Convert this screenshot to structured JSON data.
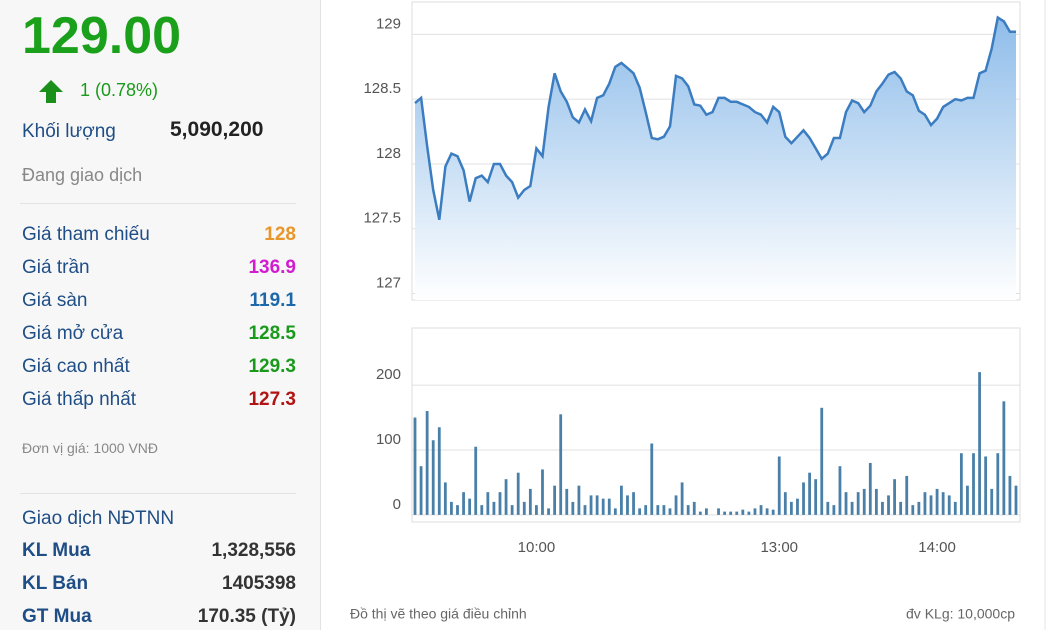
{
  "quote": {
    "price": "129.00",
    "change": "1 (0.78%)",
    "volume_label": "Khối lượng",
    "volume": "5,090,200",
    "status": "Đang giao dịch"
  },
  "stats": [
    {
      "label": "Giá tham chiếu",
      "value": 128,
      "color": "#e8962a"
    },
    {
      "label": "Giá trần",
      "value": 136.9,
      "color": "#d21ccf"
    },
    {
      "label": "Giá sàn",
      "value": 119.1,
      "color": "#1c68a8"
    },
    {
      "label": "Giá mở cửa",
      "value": 128.5,
      "color": "#1a9a1a"
    },
    {
      "label": "Giá cao nhất",
      "value": 129.3,
      "color": "#1a9a1a"
    },
    {
      "label": "Giá thấp nhất",
      "value": 127.3,
      "color": "#b01414"
    }
  ],
  "unit_note": "Đơn vị giá: 1000 VNĐ",
  "foreign": {
    "title": "Giao dịch NĐTNN",
    "rows": [
      {
        "label": "KL Mua",
        "value": "1,328,556"
      },
      {
        "label": "KL Bán",
        "value": "1405398"
      },
      {
        "label": "GT Mua",
        "value": "170.35 (Tỷ)"
      }
    ]
  },
  "chart_data": [
    {
      "type": "line",
      "color": "#3b7dc0",
      "ylim": [
        126.95,
        129.25
      ],
      "yticks": [
        127,
        127.5,
        128,
        128.5,
        129
      ],
      "grid": true,
      "values": [
        128.47,
        128.51,
        128.14,
        127.8,
        127.57,
        127.98,
        128.08,
        128.06,
        127.95,
        127.71,
        127.89,
        127.91,
        127.86,
        128.0,
        128.0,
        127.91,
        127.86,
        127.74,
        127.8,
        127.83,
        128.12,
        128.06,
        128.44,
        128.7,
        128.56,
        128.48,
        128.36,
        128.32,
        128.42,
        128.33,
        128.51,
        128.53,
        128.62,
        128.75,
        128.78,
        128.74,
        128.7,
        128.59,
        128.4,
        128.2,
        128.19,
        128.21,
        128.29,
        128.68,
        128.66,
        128.6,
        128.46,
        128.45,
        128.38,
        128.4,
        128.51,
        128.51,
        128.48,
        128.48,
        128.46,
        128.44,
        128.4,
        128.38,
        128.32,
        128.44,
        128.4,
        128.21,
        128.16,
        128.21,
        128.26,
        128.2,
        128.12,
        128.04,
        128.08,
        128.2,
        128.2,
        128.4,
        128.49,
        128.47,
        128.4,
        128.45,
        128.56,
        128.62,
        128.69,
        128.71,
        128.66,
        128.56,
        128.53,
        128.41,
        128.38,
        128.3,
        128.35,
        128.44,
        128.47,
        128.5,
        128.49,
        128.51,
        128.51,
        128.7,
        128.72,
        128.89,
        129.13,
        129.1,
        129.02,
        129.02
      ]
    },
    {
      "type": "bar",
      "color": "#4a80a8",
      "ylim": [
        -11,
        288
      ],
      "yticks": [
        0,
        100,
        200
      ],
      "categories": [
        null,
        null,
        null,
        null,
        null,
        null,
        null,
        null,
        null,
        null,
        null,
        null,
        null,
        null,
        null,
        null,
        null,
        null,
        null,
        null,
        "10:00",
        null,
        null,
        null,
        null,
        null,
        null,
        null,
        null,
        null,
        null,
        null,
        null,
        null,
        null,
        null,
        null,
        null,
        null,
        null,
        null,
        null,
        null,
        null,
        null,
        null,
        null,
        null,
        null,
        null,
        null,
        null,
        null,
        null,
        null,
        null,
        null,
        null,
        null,
        null,
        "13:00",
        null,
        null,
        null,
        null,
        null,
        null,
        null,
        null,
        null,
        null,
        null,
        null,
        null,
        null,
        null,
        null,
        null,
        null,
        null,
        null,
        null,
        null,
        null,
        null,
        null,
        "14:00",
        null,
        null,
        null,
        null,
        null,
        null,
        null,
        null,
        null,
        null,
        null,
        null,
        null
      ],
      "values": [
        150,
        75,
        160,
        115,
        135,
        50,
        20,
        15,
        35,
        25,
        105,
        15,
        35,
        20,
        35,
        55,
        15,
        65,
        20,
        40,
        15,
        70,
        10,
        45,
        155,
        40,
        20,
        45,
        15,
        30,
        30,
        25,
        25,
        10,
        45,
        30,
        35,
        10,
        15,
        110,
        15,
        15,
        10,
        30,
        50,
        15,
        20,
        5,
        10,
        0,
        10,
        5,
        5,
        5,
        8,
        5,
        10,
        15,
        10,
        8,
        90,
        35,
        20,
        25,
        50,
        65,
        55,
        165,
        20,
        15,
        75,
        35,
        20,
        35,
        40,
        80,
        40,
        20,
        30,
        55,
        20,
        60,
        15,
        20,
        35,
        30,
        40,
        35,
        30,
        20,
        95,
        45,
        95,
        220,
        90,
        40,
        95,
        175,
        60,
        45
      ]
    }
  ],
  "footer": {
    "note": "Đồ thị vẽ theo giá điều chỉnh",
    "unit": "đv KLg: 10,000cp"
  }
}
